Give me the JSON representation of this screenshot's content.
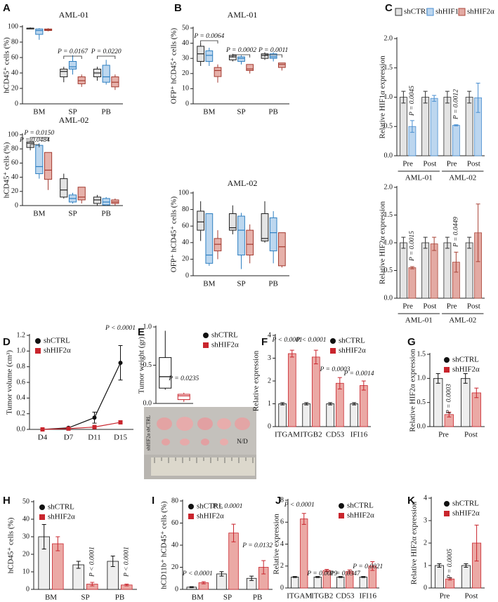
{
  "chart_data": [
    {
      "type": "box",
      "label": "A",
      "title": "AML-01",
      "ylabel": "hCD45⁺ cells (%)",
      "categories": [
        "BM",
        "SP",
        "PB"
      ],
      "ylim": [
        0,
        100
      ],
      "yticks": [
        0,
        20,
        40,
        60,
        80,
        100
      ],
      "series": [
        {
          "color": "#222222",
          "fill": "#e4e4e4",
          "values": [
            [
              97,
              97,
              98,
              98,
              99
            ],
            [
              28,
              35,
              42,
              45,
              48
            ],
            [
              30,
              35,
              40,
              45,
              48
            ]
          ]
        },
        {
          "color": "#2e7fc1",
          "fill": "#bcd7ef",
          "values": [
            [
              83,
              90,
              95,
              97,
              98
            ],
            [
              38,
              45,
              48,
              55,
              63
            ],
            [
              25,
              28,
              35,
              50,
              57
            ]
          ]
        },
        {
          "color": "#a33a30",
          "fill": "#e6b1aa",
          "values": [
            [
              94,
              95,
              96,
              97,
              98
            ],
            [
              22,
              26,
              30,
              35,
              38
            ],
            [
              18,
              22,
              28,
              35,
              38
            ]
          ]
        }
      ],
      "annotations": [
        "P = 0.0167",
        "P = 0.0220"
      ]
    },
    {
      "type": "box",
      "label": "B",
      "title": "AML-01",
      "ylabel": "OFP⁺ hCD45⁺ cells (%)",
      "categories": [
        "BM",
        "SP",
        "PB"
      ],
      "ylim": [
        0,
        50
      ],
      "yticks": [
        0,
        10,
        20,
        30,
        40,
        50
      ],
      "series": [
        {
          "color": "#222222",
          "fill": "#e4e4e4",
          "values": [
            [
              25,
              28,
              33,
              38,
              40
            ],
            [
              28,
              29,
              31,
              32,
              33
            ],
            [
              29,
              30,
              32,
              33,
              34
            ]
          ]
        },
        {
          "color": "#2e7fc1",
          "fill": "#bcd7ef",
          "values": [
            [
              25,
              28,
              32,
              35,
              37
            ],
            [
              26,
              28,
              30,
              31,
              32
            ],
            [
              28,
              30,
              31,
              33,
              34
            ]
          ]
        },
        {
          "color": "#a33a30",
          "fill": "#e6b1aa",
          "values": [
            [
              14,
              18,
              22,
              24,
              26
            ],
            [
              20,
              22,
              23,
              26,
              26
            ],
            [
              22,
              24,
              26,
              27,
              27
            ]
          ]
        }
      ],
      "annotations": [
        "P = 0.0064",
        "P = 0.0002",
        "P = 0.0011"
      ]
    },
    {
      "type": "bar",
      "label": "C",
      "ylabel": "Relative HIF1α expression",
      "categories": [
        "Pre",
        "Post",
        "Pre",
        "Post"
      ],
      "groups": [
        "AML-01",
        "AML-02"
      ],
      "ylim": [
        0,
        2
      ],
      "yticks": [
        {
          "value": 0,
          "label": "0.0"
        },
        0.5,
        {
          "value": 1,
          "label": "1.0"
        },
        1.5,
        {
          "value": 2,
          "label": "2.0"
        }
      ],
      "legend": "top",
      "series": [
        {
          "name": "shCTRL",
          "color": "#333333",
          "fill": "#e3e3e3",
          "values": [
            1,
            1,
            1,
            1
          ],
          "errors": [
            0.1,
            0.1,
            0.1,
            0.1
          ]
        },
        {
          "name": "shHIF1α",
          "color": "#4a8fd0",
          "fill": "#bcd6ef",
          "values": [
            0.5,
            0.98,
            0.52,
            0.99
          ],
          "errors": [
            0.1,
            0.05,
            0.01,
            0.25
          ]
        },
        {
          "name": "shHIF2α",
          "color": "#a94438",
          "fill": "#e3aaa3",
          "values": [
            null,
            null,
            null,
            null
          ]
        }
      ],
      "annotations": [
        "P = 0.0045",
        "P = 0.0012"
      ]
    },
    {
      "type": "box",
      "title": "AML-02",
      "ylabel": "hCD45⁺ cells (%)",
      "categories": [
        "BM",
        "SP",
        "PB"
      ],
      "ylim": [
        0,
        100
      ],
      "yticks": [
        0,
        20,
        40,
        60,
        80,
        100
      ],
      "series": [
        {
          "color": "#222222",
          "fill": "#e4e4e4",
          "values": [
            [
              78,
              82,
              88,
              90,
              92
            ],
            [
              10,
              12,
              22,
              38,
              45
            ],
            [
              0,
              3,
              8,
              12,
              15
            ]
          ]
        },
        {
          "color": "#2e7fc1",
          "fill": "#bcd7ef",
          "values": [
            [
              38,
              45,
              55,
              85,
              88
            ],
            [
              3,
              5,
              10,
              15,
              18
            ],
            [
              0,
              1,
              5,
              10,
              12
            ]
          ]
        },
        {
          "color": "#a33a30",
          "fill": "#e6b1aa",
          "values": [
            [
              22,
              37,
              50,
              75,
              75
            ],
            [
              3,
              8,
              12,
              26,
              26
            ],
            [
              0,
              3,
              5,
              8,
              10
            ]
          ]
        }
      ],
      "annotations": [
        "P = 0.0150",
        "P = 0.0484"
      ]
    },
    {
      "type": "box",
      "title": "AML-02",
      "ylabel": "OFP⁺ hCD45⁺ cells (%)",
      "categories": [
        "BM",
        "SP",
        "PB"
      ],
      "ylim": [
        0,
        100
      ],
      "yticks": [
        0,
        20,
        40,
        60,
        80,
        100
      ],
      "series": [
        {
          "color": "#222222",
          "fill": "#e4e4e4",
          "values": [
            [
              42,
              55,
              65,
              78,
              90
            ],
            [
              50,
              55,
              58,
              75,
              85
            ],
            [
              40,
              42,
              45,
              75,
              90
            ]
          ]
        },
        {
          "color": "#2e7fc1",
          "fill": "#bcd7ef",
          "values": [
            [
              12,
              15,
              25,
              75,
              75
            ],
            [
              8,
              25,
              55,
              72,
              76
            ],
            [
              15,
              30,
              52,
              70,
              78
            ]
          ]
        },
        {
          "color": "#a33a30",
          "fill": "#e6b1aa",
          "values": [
            [
              20,
              30,
              38,
              45,
              55
            ],
            [
              15,
              25,
              38,
              55,
              62
            ],
            [
              10,
              12,
              35,
              52,
              52
            ]
          ]
        }
      ]
    },
    {
      "type": "bar",
      "ylabel": "Relative HIF2α expression",
      "categories": [
        "Pre",
        "Post",
        "Pre",
        "Post"
      ],
      "groups": [
        "AML-01",
        "AML-02"
      ],
      "ylim": [
        0,
        2
      ],
      "yticks": [
        {
          "value": 0,
          "label": "0.0"
        },
        0.5,
        {
          "value": 1,
          "label": "1.0"
        },
        1.5,
        {
          "value": 2,
          "label": "2.0"
        }
      ],
      "series": [
        {
          "color": "#333333",
          "fill": "#e3e3e3",
          "values": [
            1,
            1,
            1,
            1
          ],
          "errors": [
            0.1,
            0.1,
            0.1,
            0.1
          ]
        },
        {
          "color": "#a94438",
          "fill": "#e3aaa3",
          "values": [
            0.55,
            0.98,
            0.65,
            1.18
          ],
          "errors": [
            0.02,
            0.12,
            0.18,
            0.52
          ]
        }
      ],
      "annotations": [
        "P = 0.0015",
        "P = 0.0449"
      ]
    },
    {
      "type": "line",
      "label": "D",
      "ylabel": "Tumor volume (cm³)",
      "categories": [
        "D4",
        "D7",
        "D11",
        "D15"
      ],
      "ylim": [
        0,
        1.2
      ],
      "yticks": [
        {
          "value": 0,
          "label": "0.0"
        },
        0.2,
        0.4,
        0.6,
        0.8,
        {
          "value": 1,
          "label": "1.0"
        },
        1.2
      ],
      "legend": "upper left",
      "series": [
        {
          "name": "shCTRL",
          "marker": "circle",
          "color": "#111111",
          "values": [
            0,
            0.02,
            0.15,
            0.85
          ],
          "errors": [
            0,
            0.01,
            0.07,
            0.22
          ]
        },
        {
          "name": "shHIF2α",
          "marker": "square",
          "color": "#c9252d",
          "values": [
            0,
            0.01,
            0.03,
            0.09
          ]
        }
      ],
      "annotations": [
        "P < 0.0001"
      ]
    },
    {
      "type": "box",
      "label": "E",
      "ylabel": "Tumor weight (gr)",
      "categories": [
        null,
        null
      ],
      "ylim": [
        0,
        1
      ],
      "yticks": [
        {
          "value": 0,
          "label": "0.0"
        },
        0.5,
        {
          "value": 1,
          "label": "1.0"
        }
      ],
      "legend": "right",
      "series": [
        {
          "name": "shCTRL",
          "marker": "circle",
          "color": "#111111",
          "fill": "#ffffff",
          "values": [
            [
              0.18,
              0.2,
              0.35,
              0.6,
              0.95
            ],
            null
          ]
        },
        {
          "name": "shHIF2α",
          "marker": "square",
          "color": "#c9252d",
          "fill": "#ffffff",
          "values": [
            null,
            [
              0.02,
              0.05,
              0.1,
              0.12,
              0.14
            ]
          ]
        }
      ],
      "annotations": [
        "P = 0.0235"
      ],
      "image_labels": [
        "shCTRL",
        "shHIF2α",
        "N/D"
      ]
    },
    {
      "type": "bar",
      "label": "F",
      "ylabel": "Relative expression",
      "categories": [
        "ITGAM",
        "ITGB2",
        "CD53",
        "IFI16"
      ],
      "ylim": [
        0,
        4
      ],
      "yticks": [
        0,
        1,
        2,
        3,
        4
      ],
      "legend": "upper right",
      "series": [
        {
          "name": "shCTRL",
          "marker": "circle",
          "color": "#111111",
          "fill": "#eeeeee",
          "values": [
            1,
            1,
            1,
            1
          ],
          "errors": [
            0.05,
            0.05,
            0.05,
            0.05
          ]
        },
        {
          "name": "shHIF2α",
          "marker": "square",
          "color": "#c9252d",
          "fill": "#eba9a5",
          "values": [
            3.2,
            3.05,
            1.9,
            1.8
          ],
          "errors": [
            0.15,
            0.3,
            0.25,
            0.2
          ]
        }
      ],
      "annotations": [
        "P < 0.0001",
        "P < 0.0001",
        "P = 0.0003",
        "P = 0.0014"
      ]
    },
    {
      "type": "bar",
      "label": "G",
      "ylabel": "Relative HIF2α expression",
      "categories": [
        "Pre",
        "Post"
      ],
      "ylim": [
        0,
        1.5
      ],
      "yticks": [
        {
          "value": 0,
          "label": "0.0"
        },
        0.5,
        {
          "value": 1,
          "label": "1.0"
        },
        1.5
      ],
      "legend": "upper right",
      "series": [
        {
          "name": "shCTRL",
          "marker": "circle",
          "color": "#111111",
          "fill": "#eeeeee",
          "values": [
            1,
            1
          ],
          "errors": [
            0.1,
            0.1
          ]
        },
        {
          "name": "shHIF2α",
          "marker": "square",
          "color": "#c9252d",
          "fill": "#eba9a5",
          "values": [
            0.25,
            0.7
          ],
          "errors": [
            0.05,
            0.1
          ]
        }
      ],
      "annotations": [
        "P = 0.0003"
      ]
    },
    {
      "type": "bar",
      "label": "H",
      "ylabel": "hCD45⁺ cells (%)",
      "categories": [
        "BM",
        "SP",
        "PB"
      ],
      "ylim": [
        0,
        50
      ],
      "yticks": [
        0,
        10,
        20,
        30,
        40,
        50
      ],
      "legend": "upper left",
      "series": [
        {
          "name": "shCTRL",
          "marker": "circle",
          "color": "#111111",
          "fill": "#eeeeee",
          "values": [
            30,
            14,
            16
          ],
          "errors": [
            7,
            2,
            3
          ]
        },
        {
          "name": "shHIF2α",
          "marker": "square",
          "color": "#c9252d",
          "fill": "#eba9a5",
          "values": [
            26,
            3,
            2.5
          ],
          "errors": [
            4,
            1,
            0.5
          ]
        }
      ],
      "annotations": [
        "P < 0.0001",
        "P < 0.0001"
      ]
    },
    {
      "type": "bar",
      "label": "I",
      "ylabel": "hCD11b⁺ hCD45⁺ cells (%)",
      "categories": [
        "BM",
        "SP",
        "PB"
      ],
      "ylim": [
        0,
        80
      ],
      "yticks": [
        0,
        20,
        40,
        60,
        80
      ],
      "legend": "upper left",
      "series": [
        {
          "name": "shCTRL",
          "marker": "circle",
          "color": "#111111",
          "fill": "#eeeeee",
          "values": [
            2,
            14,
            10
          ],
          "errors": [
            0.5,
            2,
            2
          ]
        },
        {
          "name": "shHIF2α",
          "marker": "square",
          "color": "#c9252d",
          "fill": "#eba9a5",
          "values": [
            6,
            51,
            20
          ],
          "errors": [
            1,
            8,
            6
          ]
        }
      ],
      "annotations": [
        "P < 0.0001",
        "P < 0.0001",
        "P = 0.0132"
      ]
    },
    {
      "type": "bar",
      "label": "J",
      "ylabel": "Relative expression",
      "categories": [
        "ITGAM",
        "ITGB2",
        "CD53",
        "IFI16"
      ],
      "ylim": [
        0,
        8
      ],
      "yticks": [
        0,
        2,
        4,
        6,
        8
      ],
      "legend": "upper right",
      "series": [
        {
          "name": "shCTRL",
          "marker": "circle",
          "color": "#111111",
          "fill": "#eeeeee",
          "values": [
            1,
            1,
            1,
            1
          ],
          "errors": [
            0.05,
            0.05,
            0.05,
            0.05
          ]
        },
        {
          "name": "shHIF2α",
          "marker": "square",
          "color": "#c9252d",
          "fill": "#eba9a5",
          "values": [
            6.3,
            1.6,
            1.5,
            2
          ],
          "errors": [
            0.5,
            0.1,
            0.15,
            0.4
          ]
        }
      ],
      "annotations": [
        "P < 0.0001",
        "P = 0.0019",
        "P = 0.0347",
        "P = 0.0021"
      ]
    },
    {
      "type": "bar",
      "label": "K",
      "ylabel": "Relative HIF2α expression",
      "categories": [
        "Pre",
        "Post"
      ],
      "ylim": [
        0,
        4
      ],
      "yticks": [
        0,
        1,
        2,
        3,
        4
      ],
      "legend": "upper right",
      "series": [
        {
          "name": "shCTRL",
          "marker": "circle",
          "color": "#111111",
          "fill": "#eeeeee",
          "values": [
            1,
            1
          ],
          "errors": [
            0.08,
            0.08
          ]
        },
        {
          "name": "shHIF2α",
          "marker": "square",
          "color": "#c9252d",
          "fill": "#eba9a5",
          "values": [
            0.4,
            2
          ],
          "errors": [
            0.05,
            0.8
          ]
        }
      ],
      "annotations": [
        "P = 0.0005"
      ]
    }
  ]
}
